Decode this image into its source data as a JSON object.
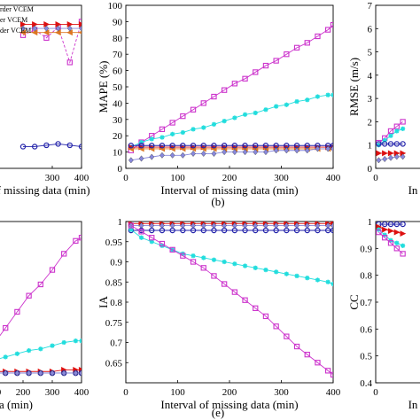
{
  "chart_data": [
    {
      "type": "line",
      "panel_label": "",
      "xlabel": "Interval of missing data (min)",
      "ylabel": "",
      "xlim": [
        0,
        400
      ],
      "ylim": [
        0,
        12
      ],
      "xticks": [
        300,
        400
      ],
      "xtick_labels": [
        "300",
        "400"
      ],
      "yticks": [],
      "ytick_labels": [],
      "grid": false,
      "legend": {
        "position": "top-left",
        "entries": [
          {
            "label": "rder VCEM",
            "color": "#000000",
            "marker": "none"
          },
          {
            "label": "er VCEM",
            "color": "#000000",
            "marker": "none"
          },
          {
            "label": "der VCEM",
            "color": "#000000",
            "marker": "none"
          }
        ]
      },
      "x": [
        200,
        240,
        280,
        320,
        360,
        400
      ],
      "series": [
        {
          "color": "#cc33cc",
          "marker": "square",
          "dash": "dashed",
          "values": [
            9.8,
            10.2,
            9.6,
            10.4,
            7.8,
            10.8
          ]
        },
        {
          "color": "#dd1111",
          "marker": "triangle-right",
          "dash": "solid",
          "values": [
            10.6,
            10.6,
            10.6,
            10.6,
            10.6,
            10.6
          ]
        },
        {
          "color": "#dd7722",
          "marker": "triangle-left",
          "dash": "solid",
          "values": [
            10.0,
            10.0,
            10.0,
            10.0,
            10.0,
            10.0
          ]
        },
        {
          "color": "#8888dd",
          "marker": "diamond",
          "dash": "solid",
          "values": [
            10.3,
            10.3,
            10.3,
            10.3,
            10.3,
            10.3
          ]
        },
        {
          "color": "#2222aa",
          "marker": "circle",
          "dash": "solid",
          "values": [
            1.6,
            1.6,
            1.7,
            1.8,
            1.7,
            1.6
          ]
        }
      ]
    },
    {
      "type": "line",
      "panel_label": "(b)",
      "xlabel": "Interval of missing data (min)",
      "ylabel": "MAPE (%)",
      "xlim": [
        0,
        400
      ],
      "ylim": [
        0,
        100
      ],
      "xticks": [
        0,
        100,
        200,
        300,
        400
      ],
      "xtick_labels": [
        "0",
        "100",
        "200",
        "300",
        "400"
      ],
      "yticks": [
        0,
        10,
        20,
        30,
        40,
        50,
        60,
        70,
        80,
        90,
        100
      ],
      "ytick_labels": [
        "0",
        "10",
        "20",
        "30",
        "40",
        "50",
        "60",
        "70",
        "80",
        "90",
        "100"
      ],
      "grid": false,
      "x": [
        10,
        30,
        50,
        70,
        90,
        110,
        130,
        150,
        170,
        190,
        210,
        230,
        250,
        270,
        290,
        310,
        330,
        350,
        370,
        390,
        400
      ],
      "series": [
        {
          "color": "#cc33cc",
          "marker": "square",
          "dash": "solid",
          "values": [
            11,
            16,
            20,
            24,
            28,
            32,
            36,
            40,
            44,
            48,
            52,
            55,
            59,
            63,
            66,
            70,
            74,
            77,
            81,
            85,
            88
          ]
        },
        {
          "color": "#22dddd",
          "marker": "star",
          "dash": "solid",
          "values": [
            13,
            16,
            18,
            19,
            21,
            22,
            24,
            25,
            27,
            29,
            31,
            33,
            34,
            36,
            38,
            39,
            41,
            42,
            44,
            45,
            45
          ]
        },
        {
          "color": "#dd1111",
          "marker": "triangle-right",
          "dash": "solid",
          "values": [
            13,
            13,
            13,
            13,
            13,
            13,
            13,
            13,
            13,
            13,
            13,
            13,
            13,
            13,
            13,
            13,
            13,
            13,
            13,
            13,
            13
          ]
        },
        {
          "color": "#dd7722",
          "marker": "triangle-left",
          "dash": "solid",
          "values": [
            12,
            12,
            12,
            12,
            12,
            12,
            12,
            12,
            12,
            12,
            12,
            12,
            12,
            12,
            12,
            12,
            12,
            12,
            12,
            12,
            12
          ]
        },
        {
          "color": "#2222aa",
          "marker": "circle",
          "dash": "solid",
          "values": [
            14,
            14,
            14,
            14,
            14,
            14,
            14,
            14,
            14,
            14,
            14,
            14,
            14,
            14,
            14,
            14,
            14,
            14,
            14,
            14,
            14
          ]
        },
        {
          "color": "#8888dd",
          "marker": "diamond",
          "dash": "solid",
          "values": [
            5,
            6,
            7,
            8,
            8,
            8,
            9,
            9,
            9,
            10,
            10,
            10,
            10,
            10,
            11,
            11,
            11,
            11,
            12,
            12,
            12
          ]
        }
      ]
    },
    {
      "type": "line",
      "panel_label": "",
      "xlabel": "In",
      "ylabel": "RMSE (m/s)",
      "xlim": [
        0,
        400
      ],
      "ylim": [
        0,
        7
      ],
      "xticks": [
        0
      ],
      "xtick_labels": [
        "0"
      ],
      "yticks": [
        0,
        1,
        2,
        3,
        4,
        5,
        6,
        7
      ],
      "ytick_labels": [
        "0",
        "1",
        "2",
        "3",
        "4",
        "5",
        "6",
        "7"
      ],
      "grid": false,
      "x": [
        10,
        30,
        50,
        70,
        90
      ],
      "series": [
        {
          "color": "#cc33cc",
          "marker": "square",
          "dash": "solid",
          "values": [
            1.1,
            1.3,
            1.6,
            1.8,
            2.0
          ]
        },
        {
          "color": "#22dddd",
          "marker": "star",
          "dash": "solid",
          "values": [
            1.0,
            1.2,
            1.4,
            1.6,
            1.7
          ]
        },
        {
          "color": "#2222aa",
          "marker": "circle",
          "dash": "solid",
          "values": [
            1.05,
            1.05,
            1.05,
            1.05,
            1.05
          ]
        },
        {
          "color": "#dd1111",
          "marker": "triangle-right",
          "dash": "solid",
          "values": [
            0.65,
            0.65,
            0.65,
            0.65,
            0.65
          ]
        },
        {
          "color": "#8888dd",
          "marker": "diamond",
          "dash": "solid",
          "values": [
            0.35,
            0.4,
            0.45,
            0.5,
            0.5
          ]
        }
      ]
    },
    {
      "type": "line",
      "panel_label": "",
      "xlabel": "data (min)",
      "ylabel": "",
      "xlim": [
        0,
        400
      ],
      "ylim": [
        0,
        10
      ],
      "xticks": [
        100,
        200,
        300,
        400
      ],
      "xtick_labels": [
        "100",
        "200",
        "300",
        "400"
      ],
      "yticks": [],
      "ytick_labels": [],
      "grid": false,
      "x": [
        100,
        140,
        180,
        220,
        260,
        300,
        340,
        380,
        400
      ],
      "series": [
        {
          "color": "#cc33cc",
          "marker": "square",
          "dash": "solid",
          "values": [
            2.4,
            3.4,
            4.4,
            5.4,
            6.1,
            7.0,
            8.0,
            8.8,
            9.0
          ]
        },
        {
          "color": "#22dddd",
          "marker": "star",
          "dash": "solid",
          "values": [
            1.4,
            1.6,
            1.8,
            2.0,
            2.1,
            2.3,
            2.5,
            2.6,
            2.6
          ]
        },
        {
          "color": "#dd1111",
          "marker": "triangle-right",
          "dash": "solid",
          "values": [
            0.7,
            0.7,
            0.7,
            0.7,
            0.7,
            0.7,
            0.8,
            0.8,
            0.8
          ]
        },
        {
          "color": "#2222aa",
          "marker": "circle",
          "dash": "solid",
          "values": [
            0.6,
            0.6,
            0.6,
            0.6,
            0.6,
            0.6,
            0.6,
            0.6,
            0.6
          ]
        },
        {
          "color": "#8888dd",
          "marker": "diamond",
          "dash": "solid",
          "values": [
            0.6,
            0.6,
            0.6,
            0.6,
            0.6,
            0.6,
            0.6,
            0.6,
            0.6
          ]
        }
      ]
    },
    {
      "type": "line",
      "panel_label": "(e)",
      "xlabel": "Interval of missing data (min)",
      "ylabel": "IA",
      "xlim": [
        0,
        400
      ],
      "ylim": [
        0.6,
        1.0
      ],
      "xticks": [
        0,
        100,
        200,
        300,
        400
      ],
      "xtick_labels": [
        "0",
        "100",
        "200",
        "300",
        "400"
      ],
      "yticks": [
        0.65,
        0.7,
        0.75,
        0.8,
        0.85,
        0.9,
        0.95,
        1.0
      ],
      "ytick_labels": [
        "0.65",
        "0.7",
        "0.75",
        "0.8",
        "0.85",
        "0.9",
        "0.95",
        "1"
      ],
      "grid": false,
      "x": [
        10,
        30,
        50,
        70,
        90,
        110,
        130,
        150,
        170,
        190,
        210,
        230,
        250,
        270,
        290,
        310,
        330,
        350,
        370,
        390,
        400
      ],
      "series": [
        {
          "color": "#dd1111",
          "marker": "triangle-right",
          "dash": "solid",
          "values": [
            0.995,
            0.995,
            0.995,
            0.995,
            0.995,
            0.995,
            0.995,
            0.995,
            0.995,
            0.995,
            0.995,
            0.995,
            0.995,
            0.995,
            0.995,
            0.995,
            0.995,
            0.995,
            0.995,
            0.995,
            0.995
          ]
        },
        {
          "color": "#8888dd",
          "marker": "diamond",
          "dash": "solid",
          "values": [
            0.99,
            0.99,
            0.99,
            0.99,
            0.99,
            0.99,
            0.99,
            0.99,
            0.99,
            0.99,
            0.99,
            0.99,
            0.99,
            0.99,
            0.99,
            0.99,
            0.99,
            0.99,
            0.99,
            0.99,
            0.99
          ]
        },
        {
          "color": "#2222aa",
          "marker": "circle",
          "dash": "solid",
          "values": [
            0.978,
            0.978,
            0.978,
            0.978,
            0.978,
            0.978,
            0.978,
            0.978,
            0.978,
            0.978,
            0.978,
            0.978,
            0.978,
            0.978,
            0.978,
            0.978,
            0.978,
            0.978,
            0.978,
            0.978,
            0.978
          ]
        },
        {
          "color": "#22dddd",
          "marker": "star",
          "dash": "solid",
          "values": [
            0.98,
            0.96,
            0.95,
            0.94,
            0.93,
            0.92,
            0.915,
            0.91,
            0.905,
            0.9,
            0.895,
            0.89,
            0.885,
            0.88,
            0.875,
            0.87,
            0.865,
            0.86,
            0.855,
            0.85,
            0.845
          ]
        },
        {
          "color": "#cc33cc",
          "marker": "square",
          "dash": "solid",
          "values": [
            0.99,
            0.975,
            0.96,
            0.945,
            0.93,
            0.915,
            0.9,
            0.885,
            0.865,
            0.845,
            0.825,
            0.805,
            0.785,
            0.765,
            0.74,
            0.715,
            0.69,
            0.67,
            0.65,
            0.63,
            0.62
          ]
        }
      ]
    },
    {
      "type": "line",
      "panel_label": "",
      "xlabel": "In",
      "ylabel": "CC",
      "xlim": [
        0,
        400
      ],
      "ylim": [
        0.4,
        1.0
      ],
      "xticks": [
        0
      ],
      "xtick_labels": [
        "0"
      ],
      "yticks": [
        0.4,
        0.5,
        0.6,
        0.7,
        0.8,
        0.9,
        1.0
      ],
      "ytick_labels": [
        "0.4",
        "0.5",
        "0.6",
        "0.7",
        "0.8",
        "0.9",
        "1"
      ],
      "grid": false,
      "x": [
        10,
        30,
        50,
        70,
        90
      ],
      "series": [
        {
          "color": "#2222aa",
          "marker": "circle",
          "dash": "solid",
          "values": [
            0.99,
            0.99,
            0.99,
            0.99,
            0.99
          ]
        },
        {
          "color": "#dd1111",
          "marker": "triangle-right",
          "dash": "solid",
          "values": [
            0.98,
            0.97,
            0.965,
            0.96,
            0.955
          ]
        },
        {
          "color": "#22dddd",
          "marker": "star",
          "dash": "solid",
          "values": [
            0.97,
            0.95,
            0.93,
            0.92,
            0.91
          ]
        },
        {
          "color": "#cc33cc",
          "marker": "square",
          "dash": "solid",
          "values": [
            0.96,
            0.94,
            0.92,
            0.9,
            0.88
          ]
        }
      ]
    }
  ]
}
